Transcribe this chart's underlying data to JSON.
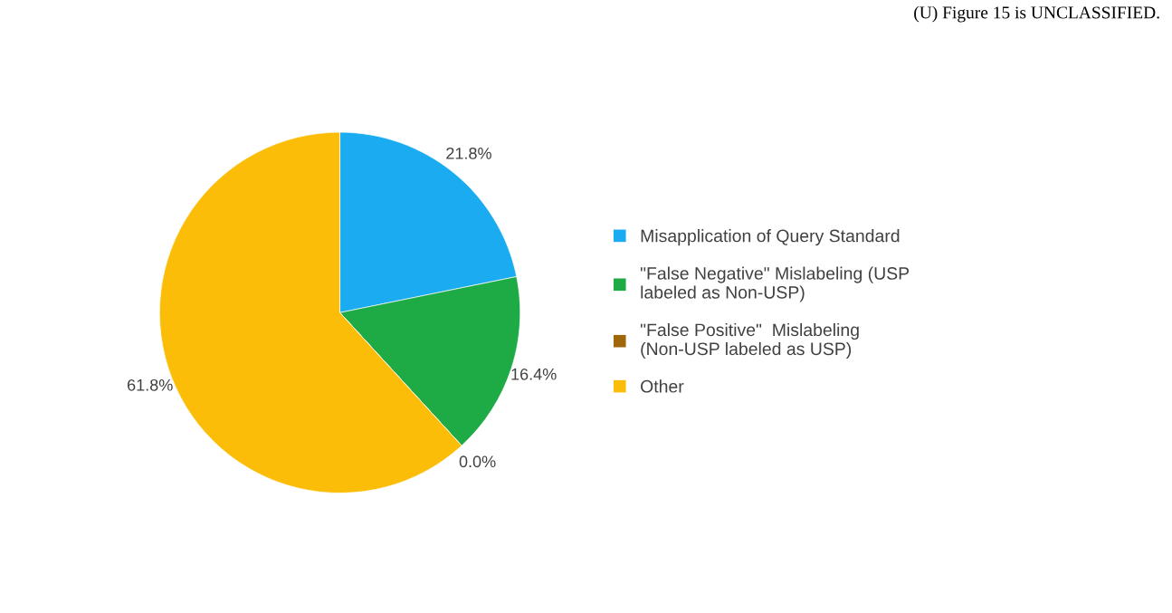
{
  "chart_data": {
    "type": "pie",
    "categories": [
      "Misapplication of Query Standard",
      "\"False Negative\" Mislabeling (USP labeled as Non-USP)",
      "\"False Positive\"  Mislabeling (Non-USP labeled as USP)",
      "Other"
    ],
    "values": [
      21.8,
      16.4,
      0.0,
      61.8
    ],
    "value_labels": [
      "21.8%",
      "16.4%",
      "0.0%",
      "61.8%"
    ],
    "colors": [
      "#1aabf0",
      "#1eaa45",
      "#a0660a",
      "#fbbd08"
    ],
    "legend": "right",
    "annotations": [
      "(U) Figure 15 is UNCLASSIFIED."
    ]
  }
}
